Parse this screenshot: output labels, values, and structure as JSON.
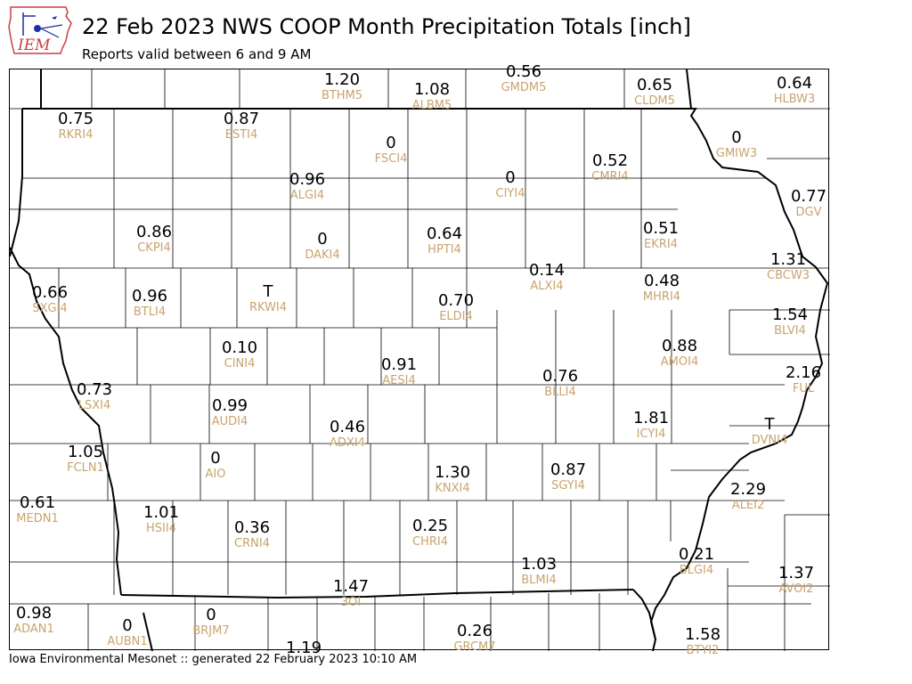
{
  "header": {
    "logo_text": "IEM",
    "title": "22 Feb 2023 NWS COOP Month Precipitation Totals [inch]",
    "subtitle": "Reports valid between 6 and 9 AM"
  },
  "footer": {
    "text": "Iowa Environmental Mesonet :: generated 22 February 2023 10:10 AM"
  },
  "colors": {
    "value": "#000000",
    "station_id": "#c8a46e",
    "county_lines": "#000000",
    "state_border": "#000000"
  },
  "stations": [
    {
      "value": "1.20",
      "id": "BTHM5"
    },
    {
      "value": "1.08",
      "id": "ALBM5"
    },
    {
      "value": "0.56",
      "id": "GMDM5"
    },
    {
      "value": "0.65",
      "id": "CLDM5"
    },
    {
      "value": "0.64",
      "id": "HLBW3"
    },
    {
      "value": "0.75",
      "id": "RKRI4"
    },
    {
      "value": "0.87",
      "id": "ESTI4"
    },
    {
      "value": "0",
      "id": "FSCI4"
    },
    {
      "value": "0",
      "id": "GMIW3"
    },
    {
      "value": "0.52",
      "id": "CMRI4"
    },
    {
      "value": "0.96",
      "id": "ALGI4"
    },
    {
      "value": "0",
      "id": "CIYI4"
    },
    {
      "value": "0.77",
      "id": "DGV"
    },
    {
      "value": "0.86",
      "id": "CKPI4"
    },
    {
      "value": "0",
      "id": "DAKI4"
    },
    {
      "value": "0.64",
      "id": "HPTI4"
    },
    {
      "value": "0.51",
      "id": "EKRI4"
    },
    {
      "value": "1.31",
      "id": "CBCW3"
    },
    {
      "value": "0.66",
      "id": "SXGI4"
    },
    {
      "value": "0.96",
      "id": "BTLI4"
    },
    {
      "value": "T",
      "id": "RKWI4"
    },
    {
      "value": "0.14",
      "id": "ALXI4"
    },
    {
      "value": "0.48",
      "id": "MHRI4"
    },
    {
      "value": "0.70",
      "id": "ELDI4"
    },
    {
      "value": "1.54",
      "id": "BLVI4"
    },
    {
      "value": "0.10",
      "id": "CINI4"
    },
    {
      "value": "0.88",
      "id": "AMOI4"
    },
    {
      "value": "0.91",
      "id": "AESI4"
    },
    {
      "value": "2.16",
      "id": "FUL"
    },
    {
      "value": "0.73",
      "id": "LSXI4"
    },
    {
      "value": "0.76",
      "id": "BLLI4"
    },
    {
      "value": "0.99",
      "id": "AUDI4"
    },
    {
      "value": "1.81",
      "id": "ICYI4"
    },
    {
      "value": "0.46",
      "id": "ADXI4"
    },
    {
      "value": "T",
      "id": "DVNI4"
    },
    {
      "value": "1.05",
      "id": "FCLN1"
    },
    {
      "value": "0",
      "id": "AIO"
    },
    {
      "value": "1.30",
      "id": "KNXI4"
    },
    {
      "value": "0.87",
      "id": "SGYI4"
    },
    {
      "value": "2.29",
      "id": "ALEI2"
    },
    {
      "value": "0.61",
      "id": "MEDN1"
    },
    {
      "value": "1.01",
      "id": "HSII4"
    },
    {
      "value": "0.36",
      "id": "CRNI4"
    },
    {
      "value": "0.25",
      "id": "CHRI4"
    },
    {
      "value": "1.03",
      "id": "BLMI4"
    },
    {
      "value": "0.21",
      "id": "BLGI4"
    },
    {
      "value": "1.37",
      "id": "AVOI2"
    },
    {
      "value": "1.47",
      "id": "3OI"
    },
    {
      "value": "0.98",
      "id": "ADAN1"
    },
    {
      "value": "0",
      "id": "AUBN1"
    },
    {
      "value": "0",
      "id": "BRJM7"
    },
    {
      "value": "0.26",
      "id": "GRCM7"
    },
    {
      "value": "1.19",
      "id": ""
    },
    {
      "value": "1.58",
      "id": "BTYI2"
    }
  ]
}
